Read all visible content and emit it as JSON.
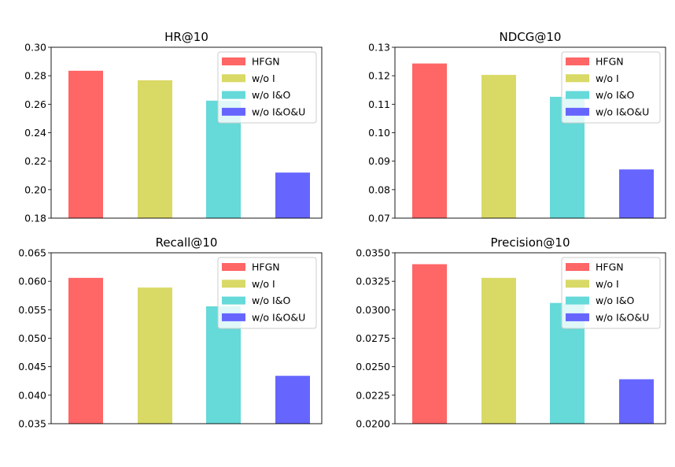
{
  "chart_data": [
    {
      "type": "bar",
      "title": "HR@10",
      "categories": [
        "HFGN",
        "w/o I",
        "w/o I&O",
        "w/o I&O&U"
      ],
      "values": [
        0.2835,
        0.2768,
        0.2625,
        0.212
      ],
      "ylim": [
        0.18,
        0.3
      ],
      "yticks": [
        0.18,
        0.2,
        0.22,
        0.24,
        0.26,
        0.28,
        0.3
      ],
      "ytick_labels": [
        "0.18",
        "0.20",
        "0.22",
        "0.24",
        "0.26",
        "0.28",
        "0.30"
      ],
      "xlabel": "",
      "ylabel": "",
      "legend": "top-right"
    },
    {
      "type": "bar",
      "title": "NDCG@10",
      "categories": [
        "HFGN",
        "w/o I",
        "w/o I&O",
        "w/o I&O&U"
      ],
      "values": [
        0.1243,
        0.1203,
        0.1126,
        0.0871
      ],
      "ylim": [
        0.07,
        0.13
      ],
      "yticks": [
        0.07,
        0.08,
        0.09,
        0.1,
        0.11,
        0.12,
        0.13
      ],
      "ytick_labels": [
        "0.07",
        "0.08",
        "0.09",
        "0.10",
        "0.11",
        "0.12",
        "0.13"
      ],
      "xlabel": "",
      "ylabel": "",
      "legend": "top-right"
    },
    {
      "type": "bar",
      "title": "Recall@10",
      "categories": [
        "HFGN",
        "w/o I",
        "w/o I&O",
        "w/o I&O&U"
      ],
      "values": [
        0.0606,
        0.0589,
        0.0556,
        0.0434
      ],
      "ylim": [
        0.035,
        0.065
      ],
      "yticks": [
        0.035,
        0.04,
        0.045,
        0.05,
        0.055,
        0.06,
        0.065
      ],
      "ytick_labels": [
        "0.035",
        "0.040",
        "0.045",
        "0.050",
        "0.055",
        "0.060",
        "0.065"
      ],
      "xlabel": "",
      "ylabel": "",
      "legend": "top-right"
    },
    {
      "type": "bar",
      "title": "Precision@10",
      "categories": [
        "HFGN",
        "w/o I",
        "w/o I&O",
        "w/o I&O&U"
      ],
      "values": [
        0.034,
        0.0328,
        0.0306,
        0.0239
      ],
      "ylim": [
        0.02,
        0.035
      ],
      "yticks": [
        0.02,
        0.0225,
        0.025,
        0.0275,
        0.03,
        0.0325,
        0.035
      ],
      "ytick_labels": [
        "0.0200",
        "0.0225",
        "0.0250",
        "0.0275",
        "0.0300",
        "0.0325",
        "0.0350"
      ],
      "xlabel": "",
      "ylabel": "",
      "legend": "top-right"
    }
  ],
  "series_colors": [
    "#ff6666",
    "#d9d966",
    "#66d9d9",
    "#6666ff"
  ]
}
